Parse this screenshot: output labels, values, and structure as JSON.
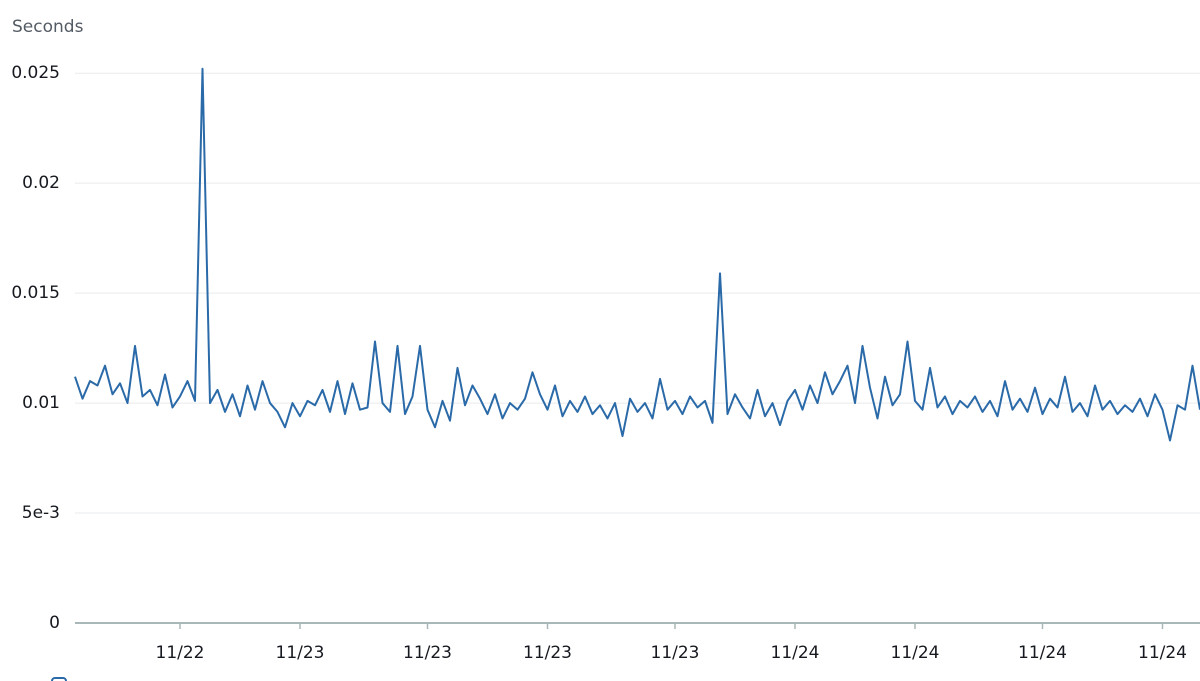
{
  "chart_data": {
    "type": "line",
    "y_label": "Seconds",
    "color": "#2b6aa8",
    "grid": true,
    "ylim": [
      0,
      0.0256
    ],
    "yticks": [
      0,
      {
        "value": 0.005,
        "label": "5e-3"
      },
      0.01,
      0.015,
      0.02,
      0.025
    ],
    "categories": [
      null,
      null,
      null,
      null,
      null,
      null,
      null,
      null,
      null,
      null,
      null,
      null,
      null,
      null,
      "11/22",
      null,
      null,
      null,
      null,
      null,
      null,
      null,
      null,
      null,
      null,
      null,
      null,
      null,
      null,
      null,
      "11/23",
      null,
      null,
      null,
      null,
      null,
      null,
      null,
      null,
      null,
      null,
      null,
      null,
      null,
      null,
      null,
      null,
      "11/23",
      null,
      null,
      null,
      null,
      null,
      null,
      null,
      null,
      null,
      null,
      null,
      null,
      null,
      null,
      null,
      "11/23",
      null,
      null,
      null,
      null,
      null,
      null,
      null,
      null,
      null,
      null,
      null,
      null,
      null,
      null,
      null,
      null,
      "11/23",
      null,
      null,
      null,
      null,
      null,
      null,
      null,
      null,
      null,
      null,
      null,
      null,
      null,
      null,
      null,
      "11/24",
      null,
      null,
      null,
      null,
      null,
      null,
      null,
      null,
      null,
      null,
      null,
      null,
      null,
      null,
      null,
      "11/24",
      null,
      null,
      null,
      null,
      null,
      null,
      null,
      null,
      null,
      null,
      null,
      null,
      null,
      null,
      null,
      null,
      "11/24",
      null,
      null,
      null,
      null,
      null,
      null,
      null,
      null,
      null,
      null,
      null,
      null,
      null,
      null,
      null,
      "11/24",
      null,
      null,
      null,
      null,
      null
    ],
    "values": [
      0.0112,
      0.0102,
      0.011,
      0.0108,
      0.0117,
      0.0104,
      0.0109,
      0.01,
      0.0126,
      0.0103,
      0.0106,
      0.0099,
      0.0113,
      0.0098,
      0.0103,
      0.011,
      0.0101,
      0.0252,
      0.01,
      0.0106,
      0.0096,
      0.0104,
      0.0094,
      0.0108,
      0.0097,
      0.011,
      0.01,
      0.0096,
      0.0089,
      0.01,
      0.0094,
      0.0101,
      0.0099,
      0.0106,
      0.0096,
      0.011,
      0.0095,
      0.0109,
      0.0097,
      0.0098,
      0.0128,
      0.01,
      0.0096,
      0.0126,
      0.0095,
      0.0103,
      0.0126,
      0.0097,
      0.0089,
      0.0101,
      0.0092,
      0.0116,
      0.0099,
      0.0108,
      0.0102,
      0.0095,
      0.0104,
      0.0093,
      0.01,
      0.0097,
      0.0102,
      0.0114,
      0.0104,
      0.0097,
      0.0108,
      0.0094,
      0.0101,
      0.0096,
      0.0103,
      0.0095,
      0.0099,
      0.0093,
      0.01,
      0.0085,
      0.0102,
      0.0096,
      0.01,
      0.0093,
      0.0111,
      0.0097,
      0.0101,
      0.0095,
      0.0103,
      0.0098,
      0.0101,
      0.0091,
      0.0159,
      0.0095,
      0.0104,
      0.0098,
      0.0093,
      0.0106,
      0.0094,
      0.01,
      0.009,
      0.0101,
      0.0106,
      0.0097,
      0.0108,
      0.01,
      0.0114,
      0.0104,
      0.011,
      0.0117,
      0.01,
      0.0126,
      0.0107,
      0.0093,
      0.0112,
      0.0099,
      0.0104,
      0.0128,
      0.0101,
      0.0097,
      0.0116,
      0.0098,
      0.0103,
      0.0095,
      0.0101,
      0.0098,
      0.0103,
      0.0096,
      0.0101,
      0.0094,
      0.011,
      0.0097,
      0.0102,
      0.0096,
      0.0107,
      0.0095,
      0.0102,
      0.0098,
      0.0112,
      0.0096,
      0.01,
      0.0094,
      0.0108,
      0.0097,
      0.0101,
      0.0095,
      0.0099,
      0.0096,
      0.0102,
      0.0094,
      0.0104,
      0.0097,
      0.0083,
      0.0099,
      0.0097,
      0.0117,
      0.0097
    ]
  }
}
